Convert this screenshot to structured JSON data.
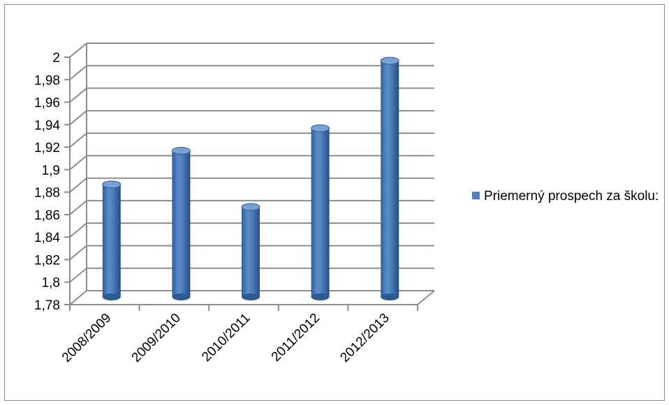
{
  "chart_data": {
    "type": "bar",
    "categories": [
      "2008/2009",
      "2009/2010",
      "2010/2011",
      "2011/2012",
      "2012/2013"
    ],
    "series": [
      {
        "name": "Priemerný prospech za školu:",
        "values": [
          1.88,
          1.91,
          1.86,
          1.93,
          1.99
        ]
      }
    ],
    "ylim": [
      1.78,
      2.0
    ],
    "yticks": [
      "1,78",
      "1,8",
      "1,82",
      "1,84",
      "1,86",
      "1,88",
      "1,9",
      "1,92",
      "1,94",
      "1,96",
      "1,98",
      "2"
    ],
    "grid": true,
    "legend_position": "right",
    "colors": {
      "bar": "#4f81bd",
      "bar_dark": "#2c5a91",
      "bar_top": "#7aa1d4",
      "grid": "#8c8c8c"
    }
  },
  "legend": {
    "label": "Priemerný prospech za školu:"
  }
}
